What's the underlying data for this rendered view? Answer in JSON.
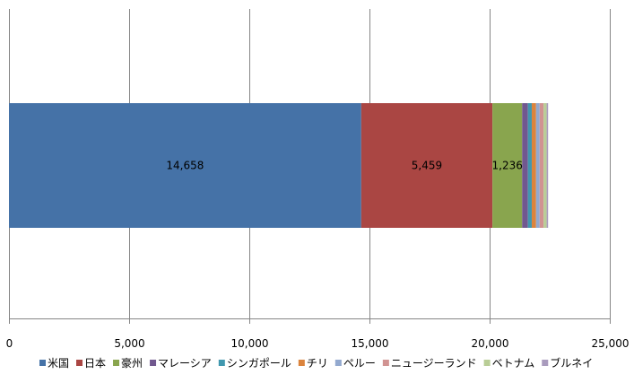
{
  "chart_data": {
    "type": "bar",
    "orientation": "horizontal",
    "stacked": true,
    "categories": [
      ""
    ],
    "series": [
      {
        "name": "米国",
        "values": [
          14658
        ],
        "color": "#4572A7",
        "label": "14,658"
      },
      {
        "name": "日本",
        "values": [
          5459
        ],
        "color": "#AA4643",
        "label": "5,459"
      },
      {
        "name": "豪州",
        "values": [
          1236
        ],
        "color": "#89A54E",
        "label": "1,236"
      },
      {
        "name": "マレーシア",
        "values": [
          240
        ],
        "color": "#71588F",
        "label": ""
      },
      {
        "name": "シンガポール",
        "values": [
          160
        ],
        "color": "#4198AF",
        "label": ""
      },
      {
        "name": "チリ",
        "values": [
          180
        ],
        "color": "#DB843D",
        "label": ""
      },
      {
        "name": "ペルー",
        "values": [
          150
        ],
        "color": "#93A9CF",
        "label": ""
      },
      {
        "name": "ニュージーランド",
        "values": [
          160
        ],
        "color": "#D19392",
        "label": ""
      },
      {
        "name": "ベトナム",
        "values": [
          130
        ],
        "color": "#B9CD96",
        "label": ""
      },
      {
        "name": "ブルネイ",
        "values": [
          60
        ],
        "color": "#A99BBD",
        "label": ""
      }
    ],
    "xlim": [
      0,
      25000
    ],
    "xticks": [
      0,
      5000,
      10000,
      15000,
      20000,
      25000
    ],
    "xtick_labels": [
      "0",
      "5,000",
      "10,000",
      "15,000",
      "20,000",
      "25,000"
    ],
    "grid": true,
    "legend_position": "bottom",
    "title": "",
    "xlabel": "",
    "ylabel": ""
  }
}
